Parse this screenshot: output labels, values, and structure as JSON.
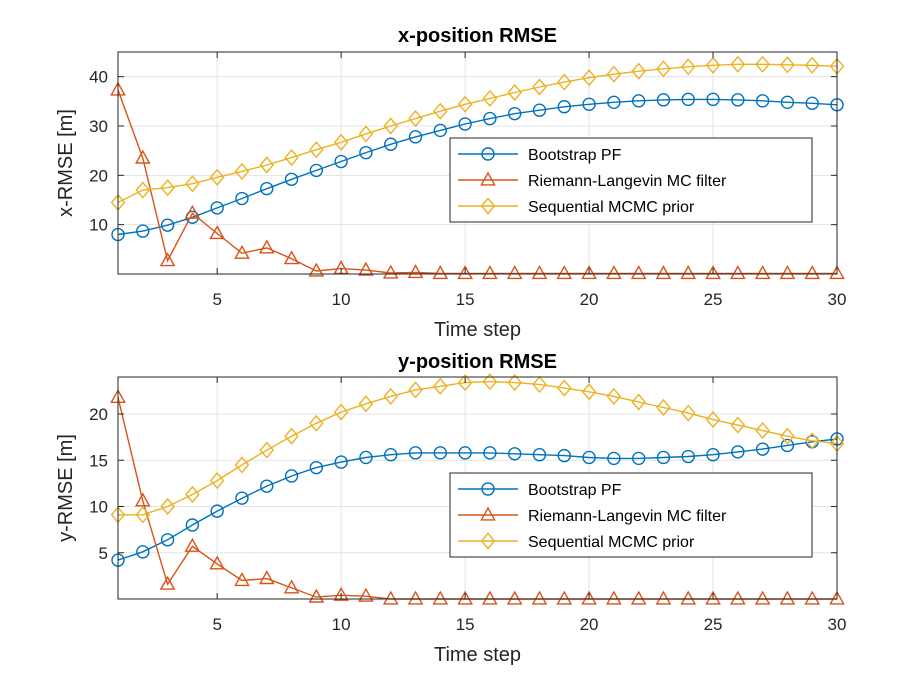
{
  "chart_data": [
    {
      "type": "line",
      "title": "x-position RMSE",
      "xlabel": "Time step",
      "ylabel": "x-RMSE [m]",
      "xlim": [
        1,
        30
      ],
      "ylim": [
        0,
        45
      ],
      "xticks": [
        5,
        10,
        15,
        20,
        25,
        30
      ],
      "yticks": [
        10,
        20,
        30,
        40
      ],
      "grid": true,
      "legend_position": "right",
      "x": [
        1,
        2,
        3,
        4,
        5,
        6,
        7,
        8,
        9,
        10,
        11,
        12,
        13,
        14,
        15,
        16,
        17,
        18,
        19,
        20,
        21,
        22,
        23,
        24,
        25,
        26,
        27,
        28,
        29,
        30
      ],
      "series": [
        {
          "name": "Bootstrap PF",
          "marker": "circle",
          "color": "#0072BD",
          "values": [
            8.0,
            8.7,
            9.9,
            11.5,
            13.4,
            15.3,
            17.3,
            19.2,
            21.0,
            22.8,
            24.6,
            26.3,
            27.8,
            29.1,
            30.4,
            31.5,
            32.5,
            33.2,
            33.9,
            34.4,
            34.8,
            35.1,
            35.3,
            35.4,
            35.4,
            35.3,
            35.1,
            34.8,
            34.6,
            34.3
          ]
        },
        {
          "name": "Riemann-Langevin MC filter",
          "marker": "triangle",
          "color": "#D95319",
          "values": [
            37.3,
            23.5,
            2.7,
            12.3,
            8.2,
            4.2,
            5.3,
            3.1,
            0.6,
            1.1,
            0.8,
            0.2,
            0.3,
            0.1,
            0.1,
            0.1,
            0.1,
            0.1,
            0.1,
            0.1,
            0.1,
            0.1,
            0.1,
            0.1,
            0.1,
            0.1,
            0.1,
            0.1,
            0.1,
            0.1
          ]
        },
        {
          "name": "Sequential MCMC prior",
          "marker": "diamond",
          "color": "#EDB120",
          "values": [
            14.5,
            17.0,
            17.5,
            18.3,
            19.6,
            20.8,
            22.1,
            23.6,
            25.2,
            26.7,
            28.4,
            30.0,
            31.5,
            33.0,
            34.4,
            35.6,
            36.8,
            37.9,
            38.9,
            39.8,
            40.5,
            41.1,
            41.6,
            42.0,
            42.3,
            42.5,
            42.5,
            42.4,
            42.3,
            42.1
          ]
        }
      ]
    },
    {
      "type": "line",
      "title": "y-position RMSE",
      "xlabel": "Time step",
      "ylabel": "y-RMSE [m]",
      "xlim": [
        1,
        30
      ],
      "ylim": [
        0,
        24
      ],
      "xticks": [
        5,
        10,
        15,
        20,
        25,
        30
      ],
      "yticks": [
        5,
        10,
        15,
        20
      ],
      "grid": true,
      "legend_position": "right",
      "x": [
        1,
        2,
        3,
        4,
        5,
        6,
        7,
        8,
        9,
        10,
        11,
        12,
        13,
        14,
        15,
        16,
        17,
        18,
        19,
        20,
        21,
        22,
        23,
        24,
        25,
        26,
        27,
        28,
        29,
        30
      ],
      "series": [
        {
          "name": "Bootstrap PF",
          "marker": "circle",
          "color": "#0072BD",
          "values": [
            4.2,
            5.1,
            6.4,
            8.0,
            9.5,
            10.9,
            12.2,
            13.3,
            14.2,
            14.8,
            15.3,
            15.6,
            15.8,
            15.8,
            15.8,
            15.8,
            15.7,
            15.6,
            15.5,
            15.3,
            15.2,
            15.2,
            15.3,
            15.4,
            15.6,
            15.9,
            16.2,
            16.6,
            17.0,
            17.3
          ]
        },
        {
          "name": "Riemann-Langevin MC filter",
          "marker": "triangle",
          "color": "#D95319",
          "values": [
            21.8,
            10.6,
            1.6,
            5.7,
            3.8,
            2.0,
            2.2,
            1.2,
            0.2,
            0.4,
            0.3,
            0.0,
            0.0,
            0.0,
            0.0,
            0.0,
            0.0,
            0.0,
            0.0,
            0.0,
            0.0,
            0.0,
            0.0,
            0.0,
            0.0,
            0.0,
            0.0,
            0.0,
            0.0,
            0.0
          ]
        },
        {
          "name": "Sequential MCMC prior",
          "marker": "diamond",
          "color": "#EDB120",
          "values": [
            9.1,
            9.1,
            10.0,
            11.3,
            12.8,
            14.5,
            16.1,
            17.6,
            19.0,
            20.2,
            21.1,
            21.9,
            22.6,
            23.0,
            23.4,
            23.5,
            23.4,
            23.2,
            22.8,
            22.4,
            21.9,
            21.3,
            20.7,
            20.1,
            19.4,
            18.8,
            18.2,
            17.6,
            17.1,
            16.8
          ]
        }
      ]
    }
  ]
}
